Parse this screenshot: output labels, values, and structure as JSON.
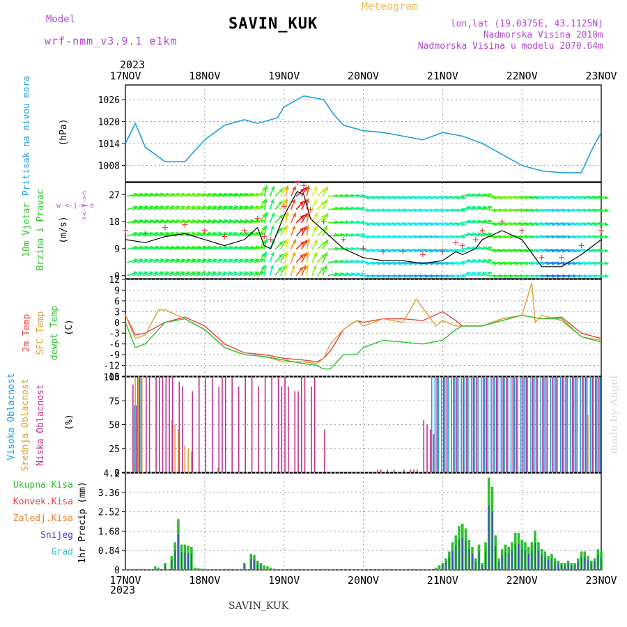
{
  "header": {
    "model_label": "Model",
    "model_name": "wrf-nmm_v3.9.1 e1km",
    "station": "SAVIN_KUK",
    "product": "Meteogram",
    "lonlat": "lon,lat (19.0375E, 43.1125N)",
    "elevation": "Nadmorska Visina 2010m",
    "model_elevation": "Nadmorska Visina u modelu 2070.64m"
  },
  "footer": {
    "station": "SAVIN_KUK",
    "credit": "made by Angel"
  },
  "time_axis": {
    "year": "2023",
    "labels": [
      "17NOV",
      "18NOV",
      "19NOV",
      "20NOV",
      "21NOV",
      "22NOV",
      "23NOV"
    ]
  },
  "panels": {
    "pressure": {
      "ylabel_1": "Pritisak na nivou mora",
      "unit": "(hPa)"
    },
    "wind": {
      "ylabel_1": "10m Vjetar",
      "ylabel_2": "Brzina i Pravac",
      "unit": "(m/s)",
      "compass": "w <-|-> e",
      "compass_v": "s<-|->n"
    },
    "temp": {
      "ylabel_1": "2m Temp",
      "ylabel_2": "SFC Temp",
      "ylabel_3": "dewpt Temp",
      "unit": "(C)"
    },
    "cloud": {
      "ylabel_1": "Visoka Oblacnost",
      "ylabel_2": "Srednja Oblacnost",
      "ylabel_3": "Niska Oblacnost",
      "unit": "(%)"
    },
    "precip": {
      "unit_label": "1hr Precip (mm)",
      "legend": [
        "Ukupna Kisa",
        "Konvek.Kisa",
        "Zaledj.Kisa",
        "Snijeg",
        "Grad"
      ]
    }
  },
  "colors": {
    "pressure": "#1ea0e0",
    "temp2m": "#e84040",
    "sfc": "#e0a030",
    "dewpt": "#30c030",
    "cloud_high": "#1ea0e0",
    "cloud_mid": "#e0a030",
    "cloud_low": "#c03090",
    "precip_total": "#30c030",
    "precip_conv": "#e84040",
    "precip_frz": "#f08030",
    "precip_snow": "#4040d0",
    "precip_grad": "#30c0c0",
    "model": "#b04ad0"
  },
  "chart_data": [
    {
      "type": "line",
      "title": "Pritisak na nivou mora",
      "ylabel": "(hPa)",
      "xlim": [
        0,
        144
      ],
      "ylim": [
        1003.5,
        1030
      ],
      "yticks": [
        1008,
        1014,
        1020,
        1026
      ],
      "series": [
        {
          "x": [
            0,
            3,
            6,
            12,
            18,
            24,
            30,
            36,
            40,
            46,
            48,
            54,
            60,
            63,
            66,
            72,
            78,
            84,
            90,
            96,
            102,
            108,
            114,
            120,
            126,
            132,
            138,
            141,
            144
          ],
          "values": [
            1014,
            1019.5,
            1013,
            1009,
            1009,
            1015,
            1019,
            1020.5,
            1019.5,
            1021,
            1024,
            1027,
            1026,
            1022,
            1019,
            1017.5,
            1017,
            1016,
            1015,
            1017,
            1016,
            1014,
            1011,
            1008,
            1006.5,
            1006,
            1006,
            1012,
            1017
          ]
        }
      ]
    },
    {
      "type": "line",
      "title": "10m Vjetar Brzina i Pravac",
      "ylabel": "(m/s)",
      "xlim": [
        0,
        144
      ],
      "ylim": [
        -1,
        31
      ],
      "yticks": [
        0,
        9,
        18,
        27
      ],
      "series": [
        {
          "x": [
            0,
            6,
            12,
            18,
            24,
            30,
            36,
            40,
            42,
            44,
            48,
            52,
            54,
            56,
            60,
            66,
            72,
            78,
            84,
            90,
            96,
            100,
            102,
            106,
            108,
            114,
            120,
            126,
            132,
            138,
            144
          ],
          "values": [
            12,
            11,
            13,
            14,
            12,
            10,
            12,
            16,
            10,
            9,
            20,
            28,
            27,
            19,
            15,
            9,
            6,
            5,
            5,
            4,
            5,
            8,
            7,
            9,
            12,
            15,
            12,
            3,
            3,
            7,
            12
          ]
        }
      ]
    },
    {
      "type": "line",
      "title": "2m Temp / SFC Temp / dewpt Temp",
      "ylabel": "(C)",
      "xlim": [
        0,
        144
      ],
      "ylim": [
        -15,
        12
      ],
      "yticks": [
        -15,
        -12,
        -9,
        -6,
        -3,
        0,
        3,
        6,
        9,
        12
      ],
      "series": [
        {
          "name": "2m Temp",
          "x": [
            0,
            3,
            6,
            12,
            18,
            24,
            30,
            36,
            42,
            48,
            54,
            58,
            60,
            62,
            66,
            70,
            72,
            78,
            84,
            90,
            96,
            100,
            102,
            108,
            114,
            120,
            126,
            132,
            138,
            144
          ],
          "values": [
            2,
            -3.5,
            -3,
            0,
            1.5,
            -1,
            -6,
            -8.5,
            -9,
            -10,
            -10.5,
            -11,
            -10,
            -8,
            -2,
            0.5,
            0,
            1,
            1,
            0.5,
            3,
            0.5,
            -1,
            -1,
            1,
            2,
            1,
            1.5,
            -3,
            -4.5
          ]
        },
        {
          "name": "SFC Temp",
          "x": [
            0,
            3,
            6,
            10,
            12,
            18,
            24,
            30,
            36,
            42,
            48,
            54,
            58,
            60,
            62,
            66,
            70,
            72,
            78,
            84,
            88,
            90,
            94,
            96,
            100,
            102,
            108,
            114,
            120,
            123,
            124,
            126,
            132,
            138,
            144
          ],
          "values": [
            2,
            -4.5,
            -3.5,
            3.5,
            3.5,
            1,
            -2,
            -7,
            -9,
            -9.5,
            -11,
            -11,
            -11.5,
            -10,
            -6,
            -2,
            0.5,
            -1,
            1,
            0,
            6.5,
            4,
            -1,
            0.5,
            -1,
            -1,
            -1,
            1,
            2,
            11,
            0,
            2,
            0.5,
            -4,
            -5
          ]
        },
        {
          "name": "dewpt Temp",
          "x": [
            0,
            3,
            6,
            12,
            18,
            24,
            30,
            36,
            42,
            48,
            54,
            58,
            60,
            62,
            64,
            66,
            70,
            72,
            78,
            84,
            90,
            96,
            100,
            102,
            108,
            114,
            120,
            126,
            132,
            138,
            144
          ],
          "values": [
            0,
            -7,
            -6,
            0,
            1,
            -2,
            -7,
            -9,
            -9.5,
            -10.5,
            -11.5,
            -12,
            -13,
            -13,
            -11,
            -9,
            -9,
            -7,
            -5,
            -5.5,
            -6,
            -5,
            -2,
            -1,
            -1,
            0.5,
            2,
            1,
            1,
            -4,
            -5.5
          ]
        }
      ]
    },
    {
      "type": "bar",
      "title": "Oblacnost",
      "ylabel": "(%)",
      "xlim": [
        0,
        144
      ],
      "ylim": [
        0,
        100
      ],
      "yticks": [
        0,
        25,
        50,
        75,
        100
      ],
      "series": [
        {
          "name": "Visoka Oblacnost",
          "x": [
            3,
            4,
            5,
            93,
            94,
            95,
            96,
            97,
            98,
            99,
            100,
            101,
            102,
            103,
            104,
            105,
            106,
            107,
            108,
            109,
            110,
            111,
            112,
            113,
            114,
            115,
            116,
            117,
            118,
            119,
            120,
            121,
            122,
            123,
            124,
            125,
            126,
            127,
            128,
            129,
            130,
            131,
            132,
            133,
            134,
            135,
            136,
            137,
            138,
            139,
            140,
            141,
            142,
            143,
            144
          ],
          "values": [
            70,
            100,
            100,
            100,
            100,
            100,
            100,
            100,
            100,
            100,
            100,
            100,
            100,
            100,
            100,
            100,
            100,
            100,
            100,
            100,
            100,
            100,
            100,
            100,
            100,
            100,
            100,
            100,
            100,
            100,
            100,
            100,
            100,
            100,
            100,
            100,
            100,
            100,
            100,
            100,
            100,
            100,
            100,
            100,
            100,
            100,
            100,
            100,
            100,
            100,
            100,
            100,
            100,
            100,
            100
          ]
        },
        {
          "name": "Srednja Oblacnost",
          "x": [
            3,
            4,
            5,
            14,
            15,
            16,
            18,
            19,
            20,
            28,
            140
          ],
          "values": [
            100,
            100,
            100,
            55,
            50,
            45,
            28,
            25,
            22,
            5,
            60
          ]
        },
        {
          "name": "Niska Oblacnost",
          "x": [
            2,
            3,
            4,
            6,
            7,
            9,
            10,
            11,
            12,
            13,
            14,
            16,
            17,
            20,
            22,
            24,
            26,
            28,
            29,
            30,
            32,
            34,
            36,
            38,
            40,
            42,
            44,
            46,
            47,
            48,
            49,
            51,
            52,
            53,
            54,
            56,
            57,
            60,
            76,
            77,
            79,
            81,
            84,
            86,
            87,
            88,
            90,
            91,
            92,
            93,
            94,
            96,
            97,
            99,
            100,
            102,
            103,
            105,
            106,
            108,
            109,
            111,
            112,
            114,
            115,
            117,
            118,
            120,
            121,
            123,
            124,
            126,
            127,
            129,
            130,
            132,
            133,
            135,
            136,
            138,
            139,
            141,
            142,
            143
          ],
          "values": [
            92,
            70,
            100,
            100,
            100,
            100,
            100,
            100,
            100,
            100,
            100,
            95,
            90,
            85,
            100,
            100,
            100,
            90,
            100,
            100,
            100,
            90,
            100,
            100,
            90,
            100,
            100,
            100,
            90,
            100,
            90,
            85,
            85,
            100,
            100,
            90,
            100,
            45,
            3,
            3,
            3,
            3,
            3,
            3,
            3,
            3,
            55,
            50,
            45,
            40,
            100,
            100,
            100,
            100,
            100,
            100,
            100,
            100,
            100,
            100,
            100,
            100,
            100,
            100,
            100,
            100,
            100,
            100,
            100,
            100,
            100,
            100,
            100,
            100,
            100,
            100,
            100,
            100,
            100,
            100,
            100,
            100,
            100,
            100
          ]
        }
      ]
    },
    {
      "type": "bar",
      "title": "1hr Precip (mm)",
      "ylabel": "1hr Precip (mm)",
      "xlim": [
        0,
        144
      ],
      "ylim": [
        0,
        4.2
      ],
      "yticks": [
        0,
        0.84,
        1.68,
        2.52,
        3.36,
        4.2
      ],
      "series": [
        {
          "name": "Ukupna Kisa",
          "x": [
            9,
            10,
            12,
            14,
            15,
            16,
            17,
            18,
            19,
            20,
            21,
            22,
            23,
            24,
            25,
            36,
            38,
            39,
            40,
            41,
            42,
            43,
            44,
            45,
            46,
            48,
            94,
            95,
            96,
            97,
            98,
            99,
            100,
            101,
            102,
            103,
            104,
            105,
            106,
            107,
            108,
            109,
            110,
            111,
            112,
            113,
            114,
            115,
            116,
            117,
            118,
            119,
            120,
            121,
            122,
            123,
            124,
            125,
            126,
            127,
            128,
            129,
            130,
            131,
            132,
            133,
            134,
            135,
            136,
            137,
            138,
            139,
            140,
            141,
            142,
            143,
            144
          ],
          "values": [
            0.15,
            0.1,
            0.3,
            0.6,
            1.2,
            2.2,
            1.1,
            1.1,
            1.05,
            1.0,
            0.1,
            0.08,
            0.05,
            0.05,
            0.03,
            0.3,
            0.7,
            0.65,
            0.4,
            0.3,
            0.2,
            0.15,
            0.1,
            0.05,
            0.03,
            0.02,
            0.1,
            0.2,
            0.3,
            0.5,
            0.8,
            1.2,
            1.5,
            1.9,
            2.0,
            1.8,
            1.3,
            1.0,
            0.5,
            1.1,
            0.3,
            1.2,
            4.0,
            3.6,
            1.5,
            0.5,
            0.9,
            1.1,
            1.0,
            1.2,
            1.6,
            1.6,
            1.3,
            1.2,
            1.0,
            1.2,
            1.7,
            1.2,
            0.9,
            0.8,
            0.6,
            0.7,
            0.5,
            0.4,
            0.3,
            0.3,
            0.4,
            0.3,
            0.3,
            0.5,
            0.8,
            0.8,
            0.6,
            0.4,
            0.5,
            0.9,
            0.8
          ]
        }
      ]
    }
  ]
}
